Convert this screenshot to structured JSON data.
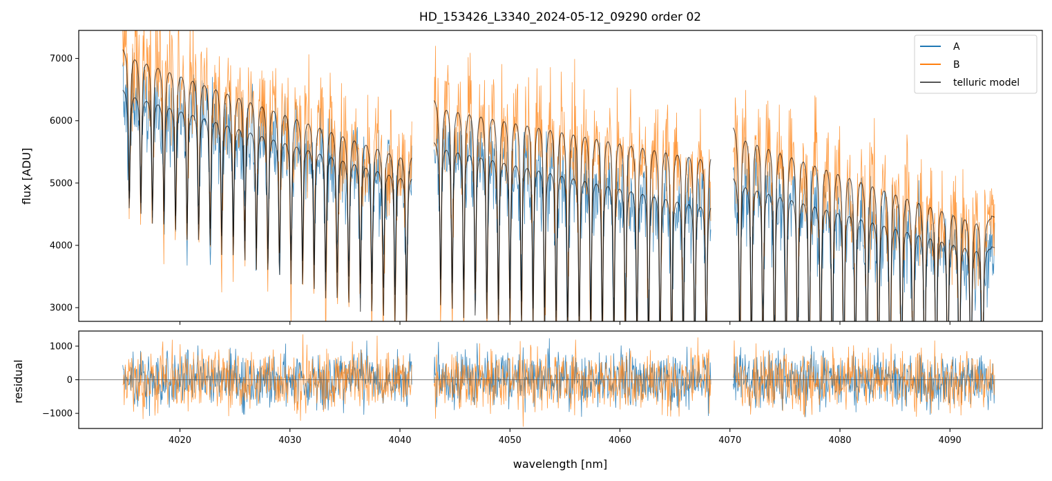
{
  "chart_data": [
    {
      "type": "line",
      "title": "HD_153426_L3340_2024-05-12_09290  order 02",
      "xlabel": "",
      "ylabel": "flux [ADU]",
      "xlim": [
        4010.8,
        4098.4
      ],
      "ylim": [
        2780,
        7450
      ],
      "xticks": [
        4020,
        4030,
        4040,
        4050,
        4060,
        4070,
        4080,
        4090
      ],
      "yticks": [
        3000,
        4000,
        5000,
        6000,
        7000
      ],
      "ytick_labels": [
        "3000",
        "4000",
        "5000",
        "6000",
        "7000"
      ],
      "segments": [
        [
          4014.8,
          4041.1
        ],
        [
          4043.1,
          4068.3
        ],
        [
          4070.3,
          4094.1
        ]
      ],
      "series": [
        {
          "name": "A",
          "color": "#1f77b4",
          "continuum_x": [
            4014.8,
            4041.1,
            4043.1,
            4068.3,
            4070.3,
            4094.1
          ],
          "continuum_y": [
            6530,
            5130,
            5700,
            4710,
            5130,
            3960
          ],
          "noise_std": 380
        },
        {
          "name": "B",
          "color": "#ff7f0e",
          "continuum_x": [
            4014.8,
            4041.1,
            4043.1,
            4068.3,
            4070.3,
            4094.1
          ],
          "continuum_y": [
            7200,
            5500,
            6400,
            5560,
            5980,
            4450
          ],
          "noise_std": 470
        },
        {
          "name": "telluric model",
          "color": "#000000",
          "line_depths": [
            0.45,
            0.6
          ]
        }
      ],
      "legend": {
        "position": "top-right",
        "entries": [
          {
            "label": "A",
            "color": "#1f77b4"
          },
          {
            "label": "B",
            "color": "#ff7f0e"
          },
          {
            "label": "telluric model",
            "color": "#555555"
          }
        ]
      }
    },
    {
      "type": "line",
      "title": "",
      "xlabel": "wavelength [nm]",
      "ylabel": "residual",
      "xlim": [
        4010.8,
        4098.4
      ],
      "ylim": [
        -1450,
        1450
      ],
      "xticks": [
        4020,
        4030,
        4040,
        4050,
        4060,
        4070,
        4080,
        4090
      ],
      "xtick_labels": [
        "4020",
        "4030",
        "4040",
        "4050",
        "4060",
        "4070",
        "4080",
        "4090"
      ],
      "yticks": [
        -1000,
        0,
        1000
      ],
      "ytick_labels": [
        "−1000",
        "0",
        "1000"
      ],
      "zero_line": 0,
      "series": [
        {
          "name": "A",
          "color": "#1f77b4",
          "noise_std": 420
        },
        {
          "name": "B",
          "color": "#ff7f0e",
          "noise_std": 470
        }
      ]
    }
  ]
}
